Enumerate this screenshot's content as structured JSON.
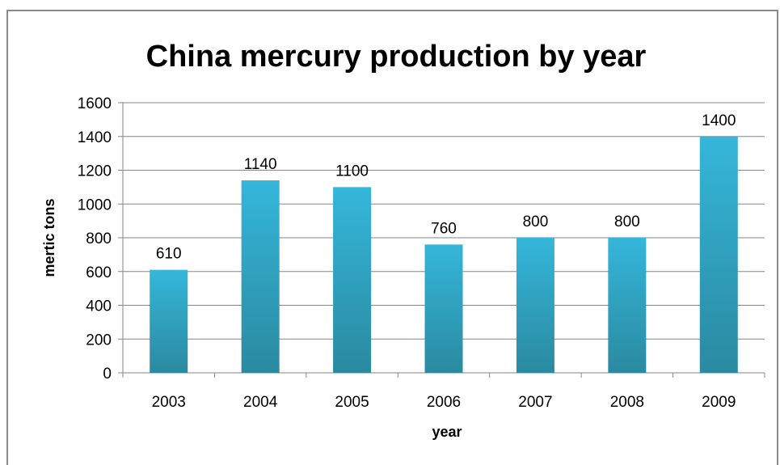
{
  "chart_data": {
    "type": "bar",
    "title": "China mercury production by year",
    "xlabel": "year",
    "ylabel": "mertic  tons",
    "categories": [
      "2003",
      "2004",
      "2005",
      "2006",
      "2007",
      "2008",
      "2009"
    ],
    "values": [
      610,
      1140,
      1100,
      760,
      800,
      800,
      1400
    ],
    "data_labels": [
      "610",
      "1140",
      "1100",
      "760",
      "800",
      "800",
      "1400"
    ],
    "ylim": [
      0,
      1600
    ],
    "yticks": [
      0,
      200,
      400,
      600,
      800,
      1000,
      1200,
      1400,
      1600
    ],
    "grid": true,
    "legend": "none",
    "colors": {
      "bar_top": "#35b6da",
      "bar_bottom": "#2a8aa0",
      "grid": "#868686",
      "frame": "#8c8c8c"
    }
  }
}
